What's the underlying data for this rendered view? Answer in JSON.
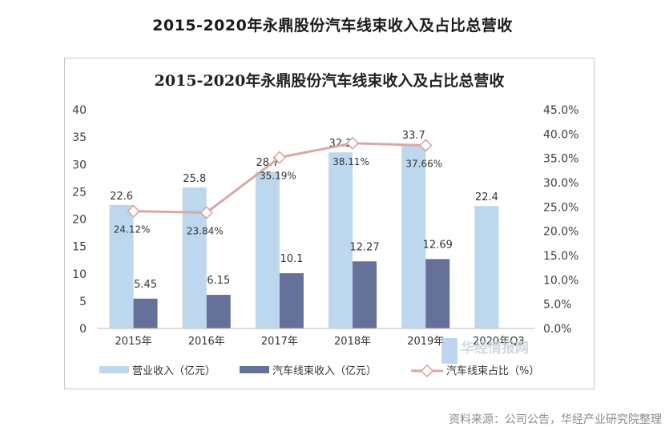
{
  "page": {
    "title": "2015-2020年永鼎股份汽车线束收入及占比总营收",
    "source": "资料来源：公司公告，华经产业研究院整理",
    "watermark": "华经情报网"
  },
  "colors": {
    "revenue": "#bdd7ee",
    "harness": "#66719a",
    "ratio": "#d8a8a8",
    "ratio_marker_edge": "#d9a0a0"
  },
  "chart_data": {
    "type": "bar",
    "title": "2015-2020年永鼎股份汽车线束收入及占比总营收",
    "categories": [
      "2015年",
      "2016年",
      "2017年",
      "2018年",
      "2019年",
      "2020年Q3"
    ],
    "series": [
      {
        "name": "营业收入（亿元）",
        "kind": "bar",
        "axis": "left",
        "values": [
          22.6,
          25.8,
          28.7,
          32.2,
          33.7,
          22.4
        ],
        "labels": [
          "22.6",
          "25.8",
          "28.7",
          "32.2",
          "33.7",
          "22.4"
        ]
      },
      {
        "name": "汽车线束收入（亿元）",
        "kind": "bar",
        "axis": "left",
        "values": [
          5.45,
          6.15,
          10.1,
          12.27,
          12.69,
          null
        ],
        "labels": [
          "5.45",
          "6.15",
          "10.1",
          "12.27",
          "12.69",
          ""
        ]
      },
      {
        "name": "汽车线束占比（%）",
        "kind": "line",
        "axis": "right",
        "values": [
          24.12,
          23.84,
          35.19,
          38.11,
          37.66,
          null
        ],
        "labels": [
          "24.12%",
          "23.84%",
          "35.19%",
          "38.11%",
          "37.66%",
          ""
        ]
      }
    ],
    "ylim": [
      0,
      40
    ],
    "yticks": [
      "0",
      "5",
      "10",
      "15",
      "20",
      "25",
      "30",
      "35",
      "40"
    ],
    "y2lim": [
      0,
      45
    ],
    "y2ticks": [
      "0.0%",
      "5.0%",
      "10.0%",
      "15.0%",
      "20.0%",
      "25.0%",
      "30.0%",
      "35.0%",
      "40.0%",
      "45.0%"
    ],
    "legend_position": "bottom"
  }
}
